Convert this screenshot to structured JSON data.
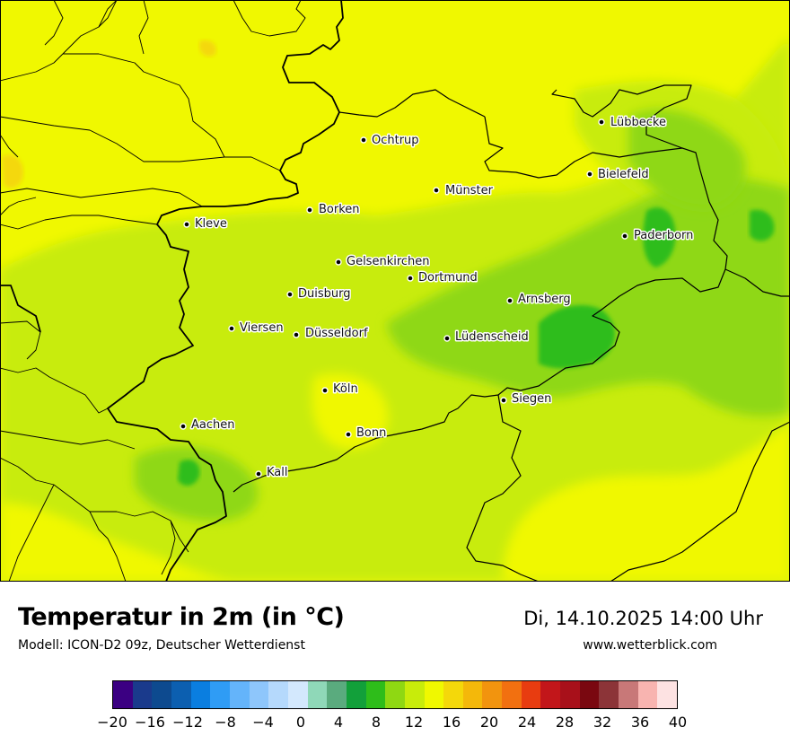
{
  "map": {
    "cities": [
      {
        "name": "Lübbecke",
        "icon": "city-dot-icon"
      },
      {
        "name": "Ochtrup",
        "icon": "city-dot-icon"
      },
      {
        "name": "Bielefeld",
        "icon": "city-dot-icon"
      },
      {
        "name": "Münster",
        "icon": "city-dot-icon"
      },
      {
        "name": "Borken",
        "icon": "city-dot-icon"
      },
      {
        "name": "Kleve",
        "icon": "city-dot-icon"
      },
      {
        "name": "Paderborn",
        "icon": "city-dot-icon"
      },
      {
        "name": "Gelsenkirchen",
        "icon": "city-dot-icon"
      },
      {
        "name": "Dortmund",
        "icon": "city-dot-icon"
      },
      {
        "name": "Duisburg",
        "icon": "city-dot-icon"
      },
      {
        "name": "Arnsberg",
        "icon": "city-dot-icon"
      },
      {
        "name": "Viersen",
        "icon": "city-dot-icon"
      },
      {
        "name": "Düsseldorf",
        "icon": "city-dot-icon"
      },
      {
        "name": "Lüdenscheid",
        "icon": "city-dot-icon"
      },
      {
        "name": "Köln",
        "icon": "city-dot-icon"
      },
      {
        "name": "Siegen",
        "icon": "city-dot-icon"
      },
      {
        "name": "Aachen",
        "icon": "city-dot-icon"
      },
      {
        "name": "Bonn",
        "icon": "city-dot-icon"
      },
      {
        "name": "Kall",
        "icon": "city-dot-icon"
      }
    ]
  },
  "legend": {
    "title": "Temperatur in 2m (in °C)",
    "subtitle": "Modell: ICON-D2 09z, Deutscher Wetterdienst",
    "datetime": "Di, 14.10.2025 14:00 Uhr",
    "website": "www.wetterblick.com",
    "colors": [
      "#3b0082",
      "#1a3a8c",
      "#0d4a8f",
      "#0c5fb0",
      "#0a7ee0",
      "#2f9cf5",
      "#64b4fa",
      "#8ec6fb",
      "#b5d9fc",
      "#d3e8fd",
      "#8fd8b8",
      "#5aab7e",
      "#12a03a",
      "#2ebd1a",
      "#8fd812",
      "#c8ec0a",
      "#f0f800",
      "#f4d80a",
      "#f4b80a",
      "#f2940e",
      "#f27010",
      "#e83c10",
      "#c2161a",
      "#a8101a",
      "#7a0810",
      "#8c3438",
      "#c87878",
      "#f8b4b0",
      "#fde2e2"
    ],
    "ticks": [
      "−20",
      "−16",
      "−12",
      "−8",
      "−4",
      "0",
      "4",
      "8",
      "12",
      "16",
      "20",
      "24",
      "28",
      "32",
      "36",
      "40"
    ]
  }
}
